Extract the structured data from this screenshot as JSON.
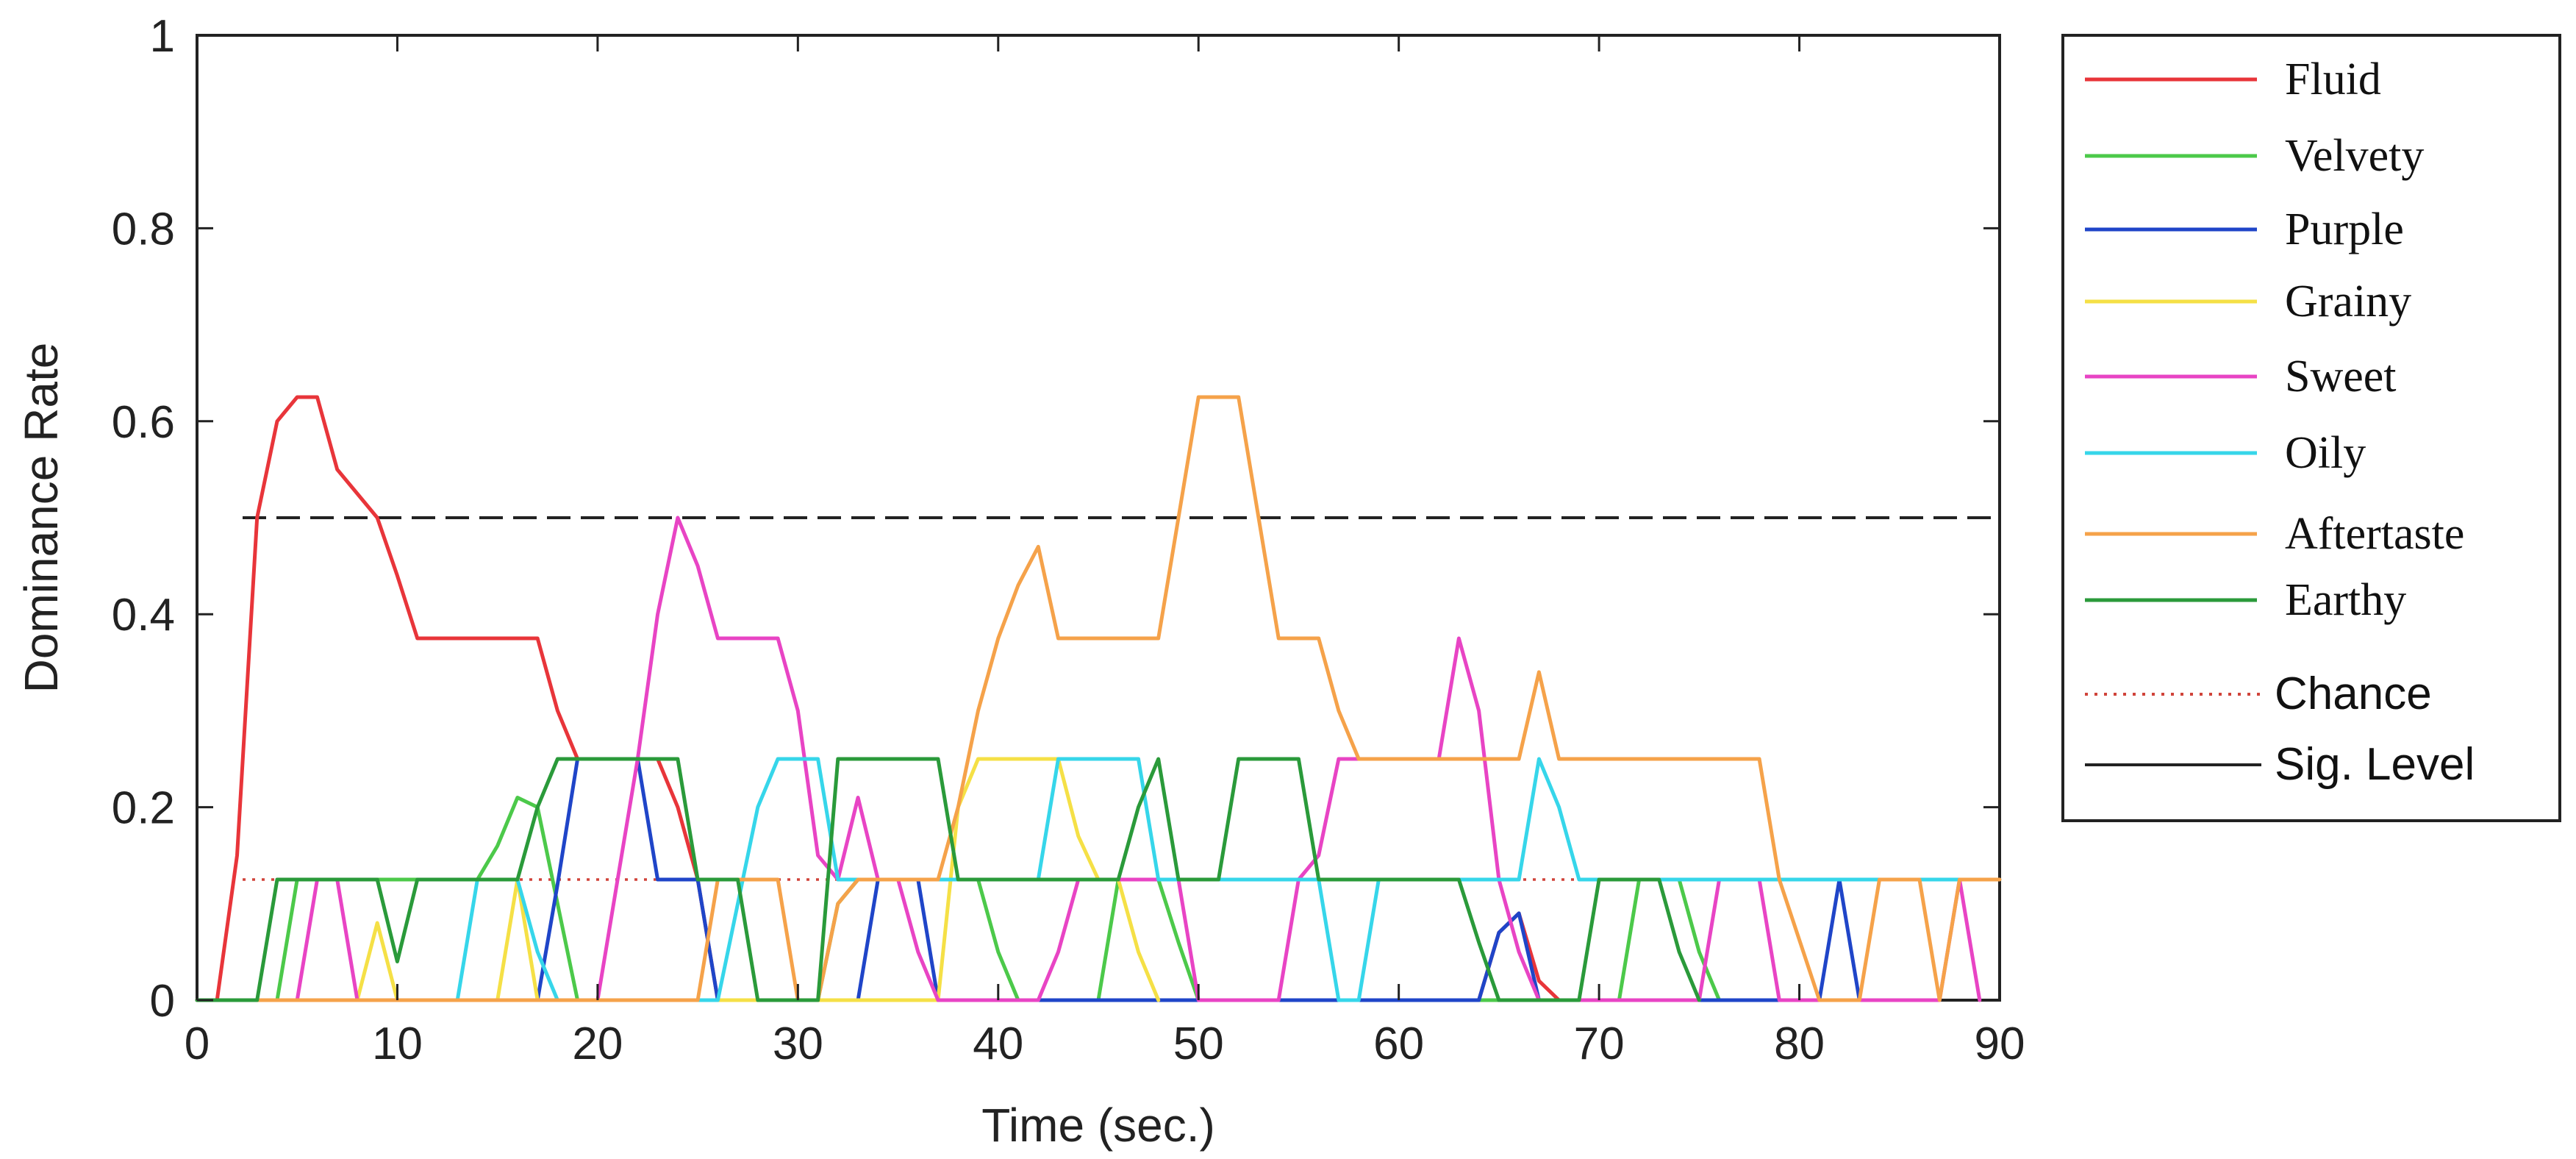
{
  "chart_data": {
    "type": "line",
    "xlabel": "Time (sec.)",
    "ylabel": "Dominance Rate",
    "xlim": [
      0,
      90
    ],
    "ylim": [
      0,
      1
    ],
    "x_ticks": [
      "0",
      "10",
      "20",
      "30",
      "40",
      "50",
      "60",
      "70",
      "80",
      "90"
    ],
    "y_ticks": [
      "0",
      "0.2",
      "0.4",
      "0.6",
      "0.8",
      "1"
    ],
    "grid": false,
    "legend_position": "outside-right",
    "reference_lines": [
      {
        "name": "Chance",
        "value": 0.125,
        "style": "dotted",
        "color": "#d0433a"
      },
      {
        "name": "Sig. Level",
        "value": 0.5,
        "style": "dashed",
        "color": "#222222"
      }
    ],
    "series": [
      {
        "name": "Fluid",
        "color": "#e8353a",
        "points": [
          [
            0,
            0
          ],
          [
            1,
            0
          ],
          [
            2,
            0.15
          ],
          [
            3,
            0.5
          ],
          [
            4,
            0.6
          ],
          [
            5,
            0.625
          ],
          [
            6,
            0.625
          ],
          [
            7,
            0.55
          ],
          [
            9,
            0.5
          ],
          [
            10,
            0.44
          ],
          [
            11,
            0.375
          ],
          [
            17,
            0.375
          ],
          [
            18,
            0.3
          ],
          [
            19,
            0.25
          ],
          [
            23,
            0.25
          ],
          [
            24,
            0.2
          ],
          [
            25,
            0.125
          ],
          [
            26,
            0
          ],
          [
            64,
            0
          ],
          [
            65,
            0.07
          ],
          [
            66,
            0.09
          ],
          [
            67,
            0.02
          ],
          [
            68,
            0
          ]
        ]
      },
      {
        "name": "Velvety",
        "color": "#4cc94a",
        "points": [
          [
            0,
            0
          ],
          [
            4,
            0
          ],
          [
            5,
            0.125
          ],
          [
            14,
            0.125
          ],
          [
            15,
            0.16
          ],
          [
            16,
            0.21
          ],
          [
            17,
            0.2
          ],
          [
            18,
            0.1
          ],
          [
            19,
            0
          ],
          [
            31,
            0
          ],
          [
            32,
            0.1
          ],
          [
            33,
            0.125
          ],
          [
            39,
            0.125
          ],
          [
            40,
            0.05
          ],
          [
            41,
            0
          ],
          [
            45,
            0
          ],
          [
            46,
            0.125
          ],
          [
            48,
            0.125
          ],
          [
            49,
            0.06
          ],
          [
            50,
            0
          ],
          [
            71,
            0
          ],
          [
            72,
            0.125
          ],
          [
            74,
            0.125
          ],
          [
            75,
            0.05
          ],
          [
            76,
            0
          ]
        ]
      },
      {
        "name": "Purple",
        "color": "#1f45c8",
        "points": [
          [
            0,
            0
          ],
          [
            17,
            0
          ],
          [
            18,
            0.12
          ],
          [
            19,
            0.25
          ],
          [
            22,
            0.25
          ],
          [
            23,
            0.125
          ],
          [
            25,
            0.125
          ],
          [
            26,
            0
          ],
          [
            33,
            0
          ],
          [
            34,
            0.125
          ],
          [
            36,
            0.125
          ],
          [
            37,
            0
          ],
          [
            64,
            0
          ],
          [
            65,
            0.07
          ],
          [
            66,
            0.09
          ],
          [
            67,
            0
          ],
          [
            81,
            0
          ],
          [
            82,
            0.125
          ],
          [
            83,
            0
          ]
        ]
      },
      {
        "name": "Grainy",
        "color": "#f5e046",
        "points": [
          [
            0,
            0
          ],
          [
            8,
            0
          ],
          [
            9,
            0.08
          ],
          [
            10,
            0
          ],
          [
            15,
            0
          ],
          [
            16,
            0.125
          ],
          [
            17,
            0
          ],
          [
            37,
            0
          ],
          [
            38,
            0.2
          ],
          [
            39,
            0.25
          ],
          [
            43,
            0.25
          ],
          [
            44,
            0.17
          ],
          [
            45,
            0.125
          ],
          [
            46,
            0.125
          ],
          [
            47,
            0.05
          ],
          [
            48,
            0
          ]
        ]
      },
      {
        "name": "Sweet",
        "color": "#e844c4",
        "points": [
          [
            0,
            0
          ],
          [
            5,
            0
          ],
          [
            6,
            0.125
          ],
          [
            7,
            0.125
          ],
          [
            8,
            0
          ],
          [
            20,
            0
          ],
          [
            21,
            0.125
          ],
          [
            22,
            0.25
          ],
          [
            23,
            0.4
          ],
          [
            24,
            0.5
          ],
          [
            25,
            0.45
          ],
          [
            26,
            0.375
          ],
          [
            29,
            0.375
          ],
          [
            30,
            0.3
          ],
          [
            31,
            0.15
          ],
          [
            32,
            0.125
          ],
          [
            33,
            0.21
          ],
          [
            34,
            0.125
          ],
          [
            35,
            0.125
          ],
          [
            36,
            0.05
          ],
          [
            37,
            0
          ],
          [
            42,
            0
          ],
          [
            43,
            0.05
          ],
          [
            44,
            0.125
          ],
          [
            49,
            0.125
          ],
          [
            50,
            0
          ],
          [
            54,
            0
          ],
          [
            55,
            0.125
          ],
          [
            56,
            0.15
          ],
          [
            57,
            0.25
          ],
          [
            62,
            0.25
          ],
          [
            63,
            0.375
          ],
          [
            64,
            0.3
          ],
          [
            65,
            0.125
          ],
          [
            66,
            0.05
          ],
          [
            67,
            0
          ],
          [
            75,
            0
          ],
          [
            76,
            0.125
          ],
          [
            78,
            0.125
          ],
          [
            79,
            0
          ],
          [
            87,
            0
          ],
          [
            88,
            0.125
          ],
          [
            89,
            0
          ]
        ]
      },
      {
        "name": "Oily",
        "color": "#36d6ea",
        "points": [
          [
            0,
            0
          ],
          [
            13,
            0
          ],
          [
            14,
            0.125
          ],
          [
            16,
            0.125
          ],
          [
            17,
            0.05
          ],
          [
            18,
            0
          ],
          [
            26,
            0
          ],
          [
            27,
            0.1
          ],
          [
            28,
            0.2
          ],
          [
            29,
            0.25
          ],
          [
            31,
            0.25
          ],
          [
            32,
            0.125
          ],
          [
            42,
            0.125
          ],
          [
            43,
            0.25
          ],
          [
            47,
            0.25
          ],
          [
            48,
            0.125
          ],
          [
            55,
            0.125
          ],
          [
            56,
            0.125
          ],
          [
            57,
            0
          ],
          [
            58,
            0
          ],
          [
            59,
            0.125
          ],
          [
            66,
            0.125
          ],
          [
            67,
            0.25
          ],
          [
            68,
            0.2
          ],
          [
            69,
            0.125
          ],
          [
            90,
            0.125
          ]
        ]
      },
      {
        "name": "Aftertaste",
        "color": "#f5a24a",
        "points": [
          [
            0,
            0
          ],
          [
            25,
            0
          ],
          [
            26,
            0.125
          ],
          [
            29,
            0.125
          ],
          [
            30,
            0
          ],
          [
            31,
            0
          ],
          [
            32,
            0.1
          ],
          [
            33,
            0.125
          ],
          [
            37,
            0.125
          ],
          [
            38,
            0.2
          ],
          [
            39,
            0.3
          ],
          [
            40,
            0.375
          ],
          [
            41,
            0.43
          ],
          [
            42,
            0.47
          ],
          [
            43,
            0.375
          ],
          [
            48,
            0.375
          ],
          [
            49,
            0.5
          ],
          [
            50,
            0.625
          ],
          [
            52,
            0.625
          ],
          [
            53,
            0.5
          ],
          [
            54,
            0.375
          ],
          [
            56,
            0.375
          ],
          [
            57,
            0.3
          ],
          [
            58,
            0.25
          ],
          [
            66,
            0.25
          ],
          [
            67,
            0.34
          ],
          [
            68,
            0.25
          ],
          [
            78,
            0.25
          ],
          [
            79,
            0.125
          ],
          [
            81,
            0
          ],
          [
            83,
            0
          ],
          [
            84,
            0.125
          ],
          [
            86,
            0.125
          ],
          [
            87,
            0
          ],
          [
            88,
            0.125
          ],
          [
            90,
            0.125
          ]
        ]
      },
      {
        "name": "Earthy",
        "color": "#2a9a3a",
        "points": [
          [
            0,
            0
          ],
          [
            3,
            0
          ],
          [
            4,
            0.125
          ],
          [
            9,
            0.125
          ],
          [
            10,
            0.04
          ],
          [
            11,
            0.125
          ],
          [
            16,
            0.125
          ],
          [
            17,
            0.2
          ],
          [
            18,
            0.25
          ],
          [
            24,
            0.25
          ],
          [
            25,
            0.125
          ],
          [
            27,
            0.125
          ],
          [
            28,
            0
          ],
          [
            31,
            0
          ],
          [
            32,
            0.25
          ],
          [
            37,
            0.25
          ],
          [
            38,
            0.125
          ],
          [
            46,
            0.125
          ],
          [
            47,
            0.2
          ],
          [
            48,
            0.25
          ],
          [
            49,
            0.125
          ],
          [
            51,
            0.125
          ],
          [
            52,
            0.25
          ],
          [
            55,
            0.25
          ],
          [
            56,
            0.125
          ],
          [
            63,
            0.125
          ],
          [
            64,
            0.06
          ],
          [
            65,
            0
          ],
          [
            69,
            0
          ],
          [
            70,
            0.125
          ],
          [
            73,
            0.125
          ],
          [
            74,
            0.05
          ],
          [
            75,
            0
          ]
        ]
      }
    ]
  }
}
